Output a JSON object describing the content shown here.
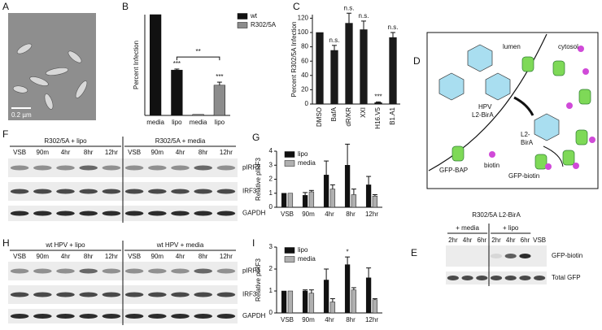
{
  "panels": {
    "A": {
      "letter": "A",
      "scale_bar": "0.2 µm"
    },
    "D": {
      "letter": "D",
      "lumen": "lumen",
      "cytosol": "cytosol",
      "hpv": "HPV",
      "l2_birA": "L2-BirA",
      "l2": "L2-",
      "birA": "BirA",
      "gfp_bap": "GFP-BAP",
      "biotin": "biotin",
      "gfp_biotin": "GFP-biotin"
    },
    "E": {
      "letter": "E",
      "title": "R302/5A L2-BirA",
      "conditions": [
        "+ media",
        "+ lipo"
      ],
      "lanes": [
        "2hr",
        "4hr",
        "6hr",
        "2hr",
        "4hr",
        "6hr",
        "VSB"
      ],
      "rows": [
        "GFP-biotin",
        "Total GFP"
      ]
    },
    "F": {
      "letter": "F",
      "conditions": [
        "R302/5A + lipo",
        "R302/5A + media"
      ],
      "lanes": [
        "VSB",
        "90m",
        "4hr",
        "8hr",
        "12hr",
        "VSB",
        "90m",
        "4hr",
        "8hr",
        "12hr"
      ],
      "rows": [
        "pIRF3",
        "IRF3",
        "GAPDH"
      ]
    },
    "H": {
      "letter": "H",
      "conditions": [
        "wt HPV + lipo",
        "wt HPV + media"
      ],
      "lanes": [
        "VSB",
        "90m",
        "4hr",
        "8hr",
        "12hr",
        "VSB",
        "90m",
        "4hr",
        "8hr",
        "12hr"
      ],
      "rows": [
        "pIRF3",
        "IRF3",
        "GAPDH"
      ]
    }
  },
  "chart_data": [
    {
      "type": "bar",
      "letter": "B",
      "y_label": "Percent Infection",
      "categories": [
        "media",
        "lipo",
        "media",
        "lipo"
      ],
      "ylim": [
        0,
        100
      ],
      "series": [
        {
          "name": "wt",
          "color": "#111111",
          "values": [
            100,
            45,
            null,
            null
          ],
          "errors": [
            0,
            1,
            null,
            null
          ],
          "marks": [
            null,
            "***",
            null,
            null
          ]
        },
        {
          "name": "R302/5A",
          "color": "#8c8c8c",
          "values": [
            null,
            null,
            1,
            30
          ],
          "errors": [
            null,
            null,
            0,
            3
          ],
          "marks": [
            null,
            null,
            null,
            "***"
          ]
        }
      ],
      "annotations": [
        "**"
      ]
    },
    {
      "type": "bar",
      "letter": "C",
      "y_label": "Percent R302/5A Infection",
      "categories": [
        "DMSO",
        "BafA",
        "dR/KR",
        "XXI",
        "H16.V5",
        "B1.A1"
      ],
      "ylim": [
        0,
        125
      ],
      "yticks": [
        0,
        20,
        40,
        60,
        80,
        100,
        120
      ],
      "series": [
        {
          "color": "#1a1a1a",
          "values": [
            100,
            75,
            113,
            104,
            2,
            93
          ],
          "errors": [
            0,
            7,
            14,
            12,
            1,
            7
          ],
          "marks": [
            null,
            "n.s.",
            "n.s.",
            "n.s.",
            "***",
            "n.s."
          ]
        }
      ]
    },
    {
      "type": "bar",
      "letter": "G",
      "y_label": "Relative pIRF3",
      "categories": [
        "VSB",
        "90m",
        "4hr",
        "8hr",
        "12hr"
      ],
      "ylim": [
        0,
        4
      ],
      "yticks": [
        0,
        1,
        2,
        3,
        4
      ],
      "series": [
        {
          "name": "lipo",
          "color": "#111111",
          "values": [
            1,
            0.85,
            2.3,
            3.0,
            1.6
          ],
          "errors": [
            0,
            0.2,
            1.0,
            1.5,
            0.6
          ]
        },
        {
          "name": "media",
          "color": "#b0b0b0",
          "values": [
            1,
            1.1,
            1.3,
            0.9,
            0.8
          ],
          "errors": [
            0,
            0.1,
            0.3,
            0.4,
            0.1
          ]
        }
      ]
    },
    {
      "type": "bar",
      "letter": "I",
      "y_label": "Relative pIRF3",
      "categories": [
        "VSB",
        "90m",
        "4hr",
        "8hr",
        "12hr"
      ],
      "ylim": [
        0,
        3
      ],
      "yticks": [
        0,
        1,
        2,
        3
      ],
      "series": [
        {
          "name": "lipo",
          "color": "#111111",
          "values": [
            1,
            1.0,
            1.5,
            2.2,
            1.6
          ],
          "errors": [
            0,
            0.05,
            0.5,
            0.35,
            0.45
          ],
          "marks": [
            null,
            null,
            null,
            "*",
            null
          ]
        },
        {
          "name": "media",
          "color": "#b0b0b0",
          "values": [
            1,
            0.9,
            0.5,
            1.05,
            0.6
          ],
          "errors": [
            0,
            0.15,
            0.15,
            0.1,
            0.05
          ]
        }
      ]
    }
  ]
}
